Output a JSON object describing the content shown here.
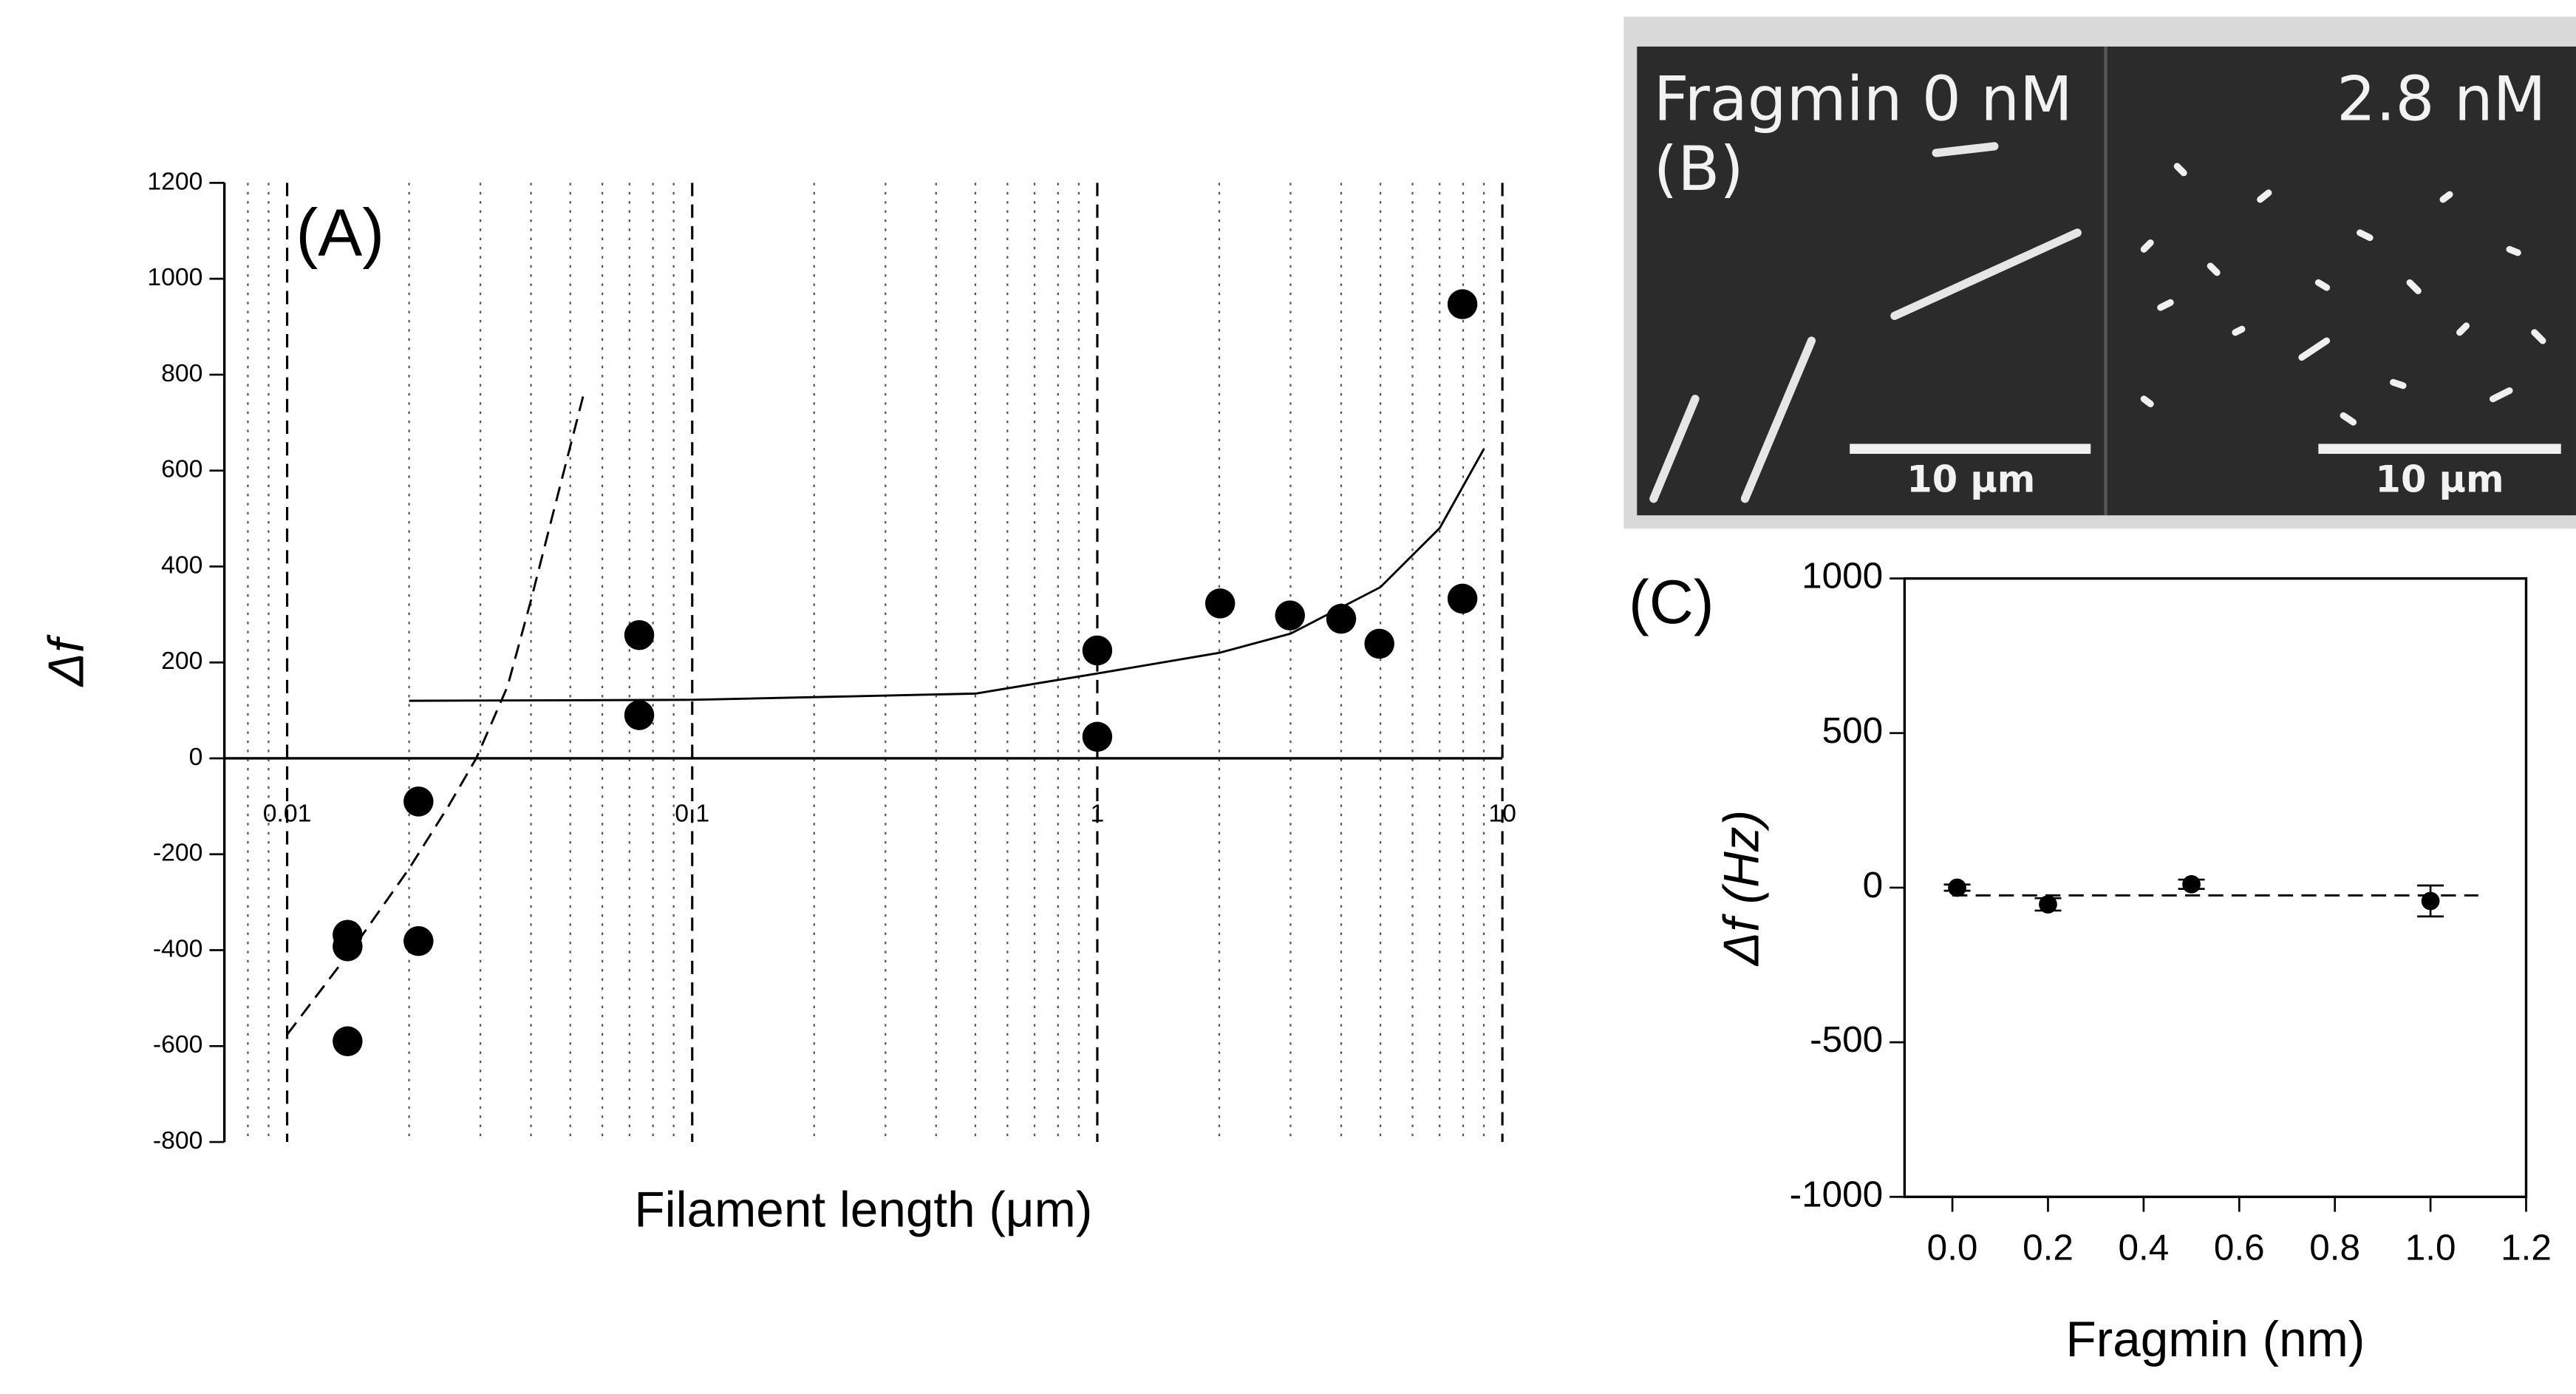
{
  "chart_data": [
    {
      "type": "scatter",
      "panel_label": "(A)",
      "xlabel": "Filament length (μm)",
      "ylabel": "Δf",
      "xlog": true,
      "xlim": [
        0.007,
        10
      ],
      "xticks": [
        0.01,
        0.1,
        1,
        10
      ],
      "ylim": [
        -800,
        1200
      ],
      "yticks": [
        -800,
        -600,
        -400,
        -200,
        0,
        200,
        400,
        600,
        800,
        1000,
        1200
      ],
      "grid": true,
      "color": "#000000",
      "x": [
        0.0141,
        0.0141,
        0.0141,
        0.0211,
        0.0211,
        0.074,
        0.074,
        1,
        1,
        2.01,
        2.99,
        4.0,
        4.97,
        7.97,
        7.97
      ],
      "values": [
        -368,
        -392,
        -590,
        -90,
        -381,
        257,
        90,
        225,
        45,
        323,
        298,
        291,
        239,
        947,
        333
      ],
      "fits": [
        {
          "style": "solid",
          "x": [
            0.02,
            0.1,
            0.5,
            1,
            2,
            3,
            5,
            7,
            9
          ],
          "values": [
            120,
            122,
            135,
            177,
            220,
            260,
            357,
            480,
            645
          ]
        },
        {
          "style": "dashed",
          "x": [
            0.01,
            0.015,
            0.02,
            0.025,
            0.0293,
            0.035,
            0.04,
            0.045,
            0.0542
          ],
          "values": [
            -576,
            -380,
            -230,
            -100,
            0,
            150,
            330,
            500,
            766
          ]
        }
      ]
    },
    {
      "type": "scatter",
      "panel_label": "(C)",
      "xlabel": "Fragmin (nm)",
      "ylabel": "Δf (Hz)",
      "xlim": [
        -0.1,
        1.2
      ],
      "xticks": [
        {
          "value": 0,
          "label": "0.0"
        },
        0.2,
        0.4,
        0.6,
        0.8,
        {
          "value": 1,
          "label": "1.0"
        },
        1.2
      ],
      "ylim": [
        -1000,
        1000
      ],
      "yticks": [
        -1000,
        -500,
        0,
        500,
        1000
      ],
      "color": "#000000",
      "x": [
        0.01,
        0.2,
        0.5,
        1.0
      ],
      "values": [
        0,
        -54,
        11,
        -43
      ],
      "errors": [
        10,
        20,
        15,
        50
      ],
      "fits": [
        {
          "style": "dashed",
          "x": [
            0,
            1.1
          ],
          "values": [
            -25,
            -25
          ]
        }
      ]
    }
  ],
  "panel_b": {
    "left_label": "Fragmin 0 nM",
    "panel_label": "(B)",
    "right_label": "2.8 nM",
    "left_scale": "10 μm",
    "right_scale": "10 μm"
  }
}
